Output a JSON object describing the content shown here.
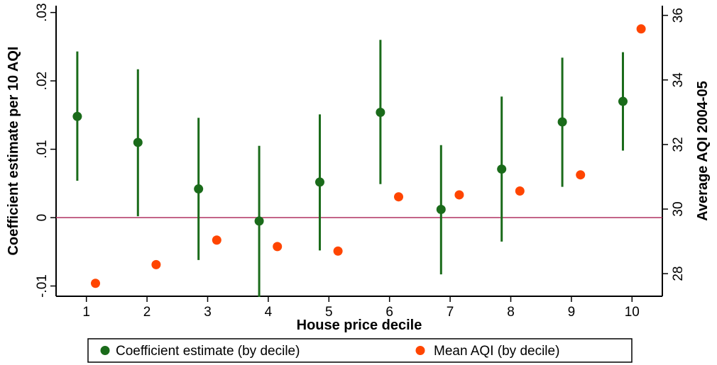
{
  "chart_data": {
    "type": "scatter",
    "x": [
      1,
      2,
      3,
      4,
      5,
      6,
      7,
      8,
      9,
      10
    ],
    "xlabel": "House price decile",
    "xlim": [
      0.5,
      10.5
    ],
    "xticks": [
      "1",
      "2",
      "3",
      "4",
      "5",
      "6",
      "7",
      "8",
      "9",
      "10"
    ],
    "ylabel_left": "Coefficient estimate per 10 AQI",
    "ylim_left": [
      -0.0115,
      0.031
    ],
    "yticks_left": [
      {
        "value": -0.01,
        "label": "-.01"
      },
      {
        "value": 0,
        "label": "0"
      },
      {
        "value": 0.01,
        "label": ".01"
      },
      {
        "value": 0.02,
        "label": ".02"
      },
      {
        "value": 0.03,
        "label": ".03"
      }
    ],
    "ylabel_right": "Average AQI 2004-05",
    "ylim_right": [
      27.3,
      36.3
    ],
    "yticks_right": [
      {
        "value": 28,
        "label": "28"
      },
      {
        "value": 30,
        "label": "30"
      },
      {
        "value": 32,
        "label": "32"
      },
      {
        "value": 34,
        "label": "34"
      },
      {
        "value": 36,
        "label": "36"
      }
    ],
    "reference_line": {
      "axis": "left",
      "value": 0,
      "color": "#b03060"
    },
    "grid": false,
    "legend_position": "bottom",
    "series": [
      {
        "name": "Coefficient estimate (by decile)",
        "axis": "left",
        "color": "#1a6b1a",
        "marker": "circle",
        "x_offset": -0.15,
        "values": [
          0.0148,
          0.011,
          0.0042,
          -0.0005,
          0.0052,
          0.0154,
          0.0012,
          0.0071,
          0.014,
          0.017
        ],
        "ci_low": [
          0.0054,
          0.0002,
          -0.0062,
          -0.0116,
          -0.0048,
          0.0049,
          -0.0083,
          -0.0035,
          0.0045,
          0.0098
        ],
        "ci_high": [
          0.0243,
          0.0217,
          0.0146,
          0.0105,
          0.0151,
          0.026,
          0.0106,
          0.0177,
          0.0234,
          0.0242
        ]
      },
      {
        "name": "Mean AQI (by decile)",
        "axis": "right",
        "color": "#ff4500",
        "marker": "circle",
        "x_offset": 0.15,
        "values": [
          27.7,
          28.28,
          29.04,
          28.84,
          28.7,
          30.38,
          30.44,
          30.56,
          31.06,
          35.58
        ]
      }
    ]
  }
}
